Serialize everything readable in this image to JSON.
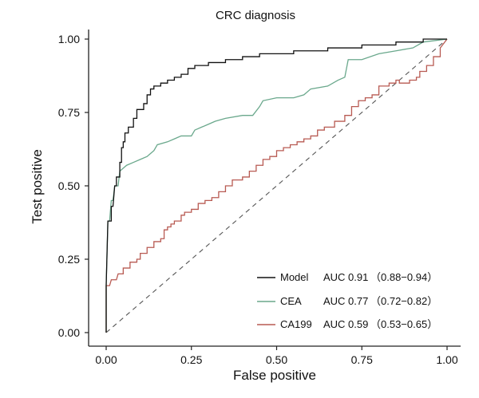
{
  "chart_data": {
    "type": "line",
    "title": "CRC diagnosis",
    "xlabel": "False positive",
    "ylabel": "Test positive",
    "xlim": [
      0,
      1
    ],
    "ylim": [
      0,
      1
    ],
    "x_ticks": [
      "0.00",
      "0.25",
      "0.50",
      "0.75",
      "1.00"
    ],
    "y_ticks": [
      "0.00",
      "0.25",
      "0.50",
      "0.75",
      "1.00"
    ],
    "grid": false,
    "legend_position": "bottom-right",
    "reference_line": {
      "style": "dashed",
      "from": [
        0,
        0
      ],
      "to": [
        1,
        1
      ],
      "color": "#555555"
    },
    "series": [
      {
        "name": "Model",
        "auc_label": "AUC 0.91",
        "ci_label": "（0.88−0.94）",
        "color": "#111111",
        "points": [
          [
            0,
            0
          ],
          [
            0,
            0.16
          ],
          [
            0.005,
            0.38
          ],
          [
            0.015,
            0.38
          ],
          [
            0.015,
            0.43
          ],
          [
            0.02,
            0.43
          ],
          [
            0.025,
            0.5
          ],
          [
            0.03,
            0.5
          ],
          [
            0.03,
            0.53
          ],
          [
            0.04,
            0.53
          ],
          [
            0.04,
            0.58
          ],
          [
            0.045,
            0.58
          ],
          [
            0.045,
            0.63
          ],
          [
            0.05,
            0.63
          ],
          [
            0.05,
            0.65
          ],
          [
            0.055,
            0.65
          ],
          [
            0.055,
            0.68
          ],
          [
            0.065,
            0.68
          ],
          [
            0.065,
            0.7
          ],
          [
            0.08,
            0.7
          ],
          [
            0.08,
            0.73
          ],
          [
            0.09,
            0.73
          ],
          [
            0.09,
            0.76
          ],
          [
            0.11,
            0.76
          ],
          [
            0.11,
            0.78
          ],
          [
            0.12,
            0.78
          ],
          [
            0.12,
            0.81
          ],
          [
            0.13,
            0.81
          ],
          [
            0.13,
            0.83
          ],
          [
            0.14,
            0.83
          ],
          [
            0.14,
            0.84
          ],
          [
            0.16,
            0.84
          ],
          [
            0.16,
            0.85
          ],
          [
            0.18,
            0.85
          ],
          [
            0.18,
            0.86
          ],
          [
            0.2,
            0.86
          ],
          [
            0.2,
            0.87
          ],
          [
            0.22,
            0.87
          ],
          [
            0.22,
            0.88
          ],
          [
            0.24,
            0.88
          ],
          [
            0.24,
            0.9
          ],
          [
            0.26,
            0.9
          ],
          [
            0.26,
            0.91
          ],
          [
            0.3,
            0.91
          ],
          [
            0.3,
            0.92
          ],
          [
            0.35,
            0.92
          ],
          [
            0.35,
            0.93
          ],
          [
            0.4,
            0.93
          ],
          [
            0.4,
            0.94
          ],
          [
            0.45,
            0.94
          ],
          [
            0.45,
            0.95
          ],
          [
            0.55,
            0.95
          ],
          [
            0.55,
            0.96
          ],
          [
            0.65,
            0.96
          ],
          [
            0.65,
            0.97
          ],
          [
            0.75,
            0.97
          ],
          [
            0.75,
            0.98
          ],
          [
            0.85,
            0.98
          ],
          [
            0.85,
            0.99
          ],
          [
            0.93,
            0.99
          ],
          [
            0.93,
            1.0
          ],
          [
            1.0,
            1.0
          ]
        ]
      },
      {
        "name": "CEA",
        "auc_label": "AUC 0.77",
        "ci_label": "（0.72−0.82）",
        "color": "#6aa88c",
        "points": [
          [
            0,
            0
          ],
          [
            0,
            0.16
          ],
          [
            0.005,
            0.38
          ],
          [
            0.01,
            0.38
          ],
          [
            0.015,
            0.45
          ],
          [
            0.02,
            0.45
          ],
          [
            0.025,
            0.5
          ],
          [
            0.035,
            0.5
          ],
          [
            0.04,
            0.55
          ],
          [
            0.05,
            0.56
          ],
          [
            0.06,
            0.57
          ],
          [
            0.08,
            0.58
          ],
          [
            0.1,
            0.59
          ],
          [
            0.12,
            0.6
          ],
          [
            0.13,
            0.61
          ],
          [
            0.14,
            0.62
          ],
          [
            0.15,
            0.64
          ],
          [
            0.18,
            0.65
          ],
          [
            0.2,
            0.66
          ],
          [
            0.22,
            0.67
          ],
          [
            0.25,
            0.67
          ],
          [
            0.26,
            0.69
          ],
          [
            0.28,
            0.7
          ],
          [
            0.3,
            0.71
          ],
          [
            0.32,
            0.72
          ],
          [
            0.35,
            0.73
          ],
          [
            0.4,
            0.74
          ],
          [
            0.43,
            0.74
          ],
          [
            0.45,
            0.77
          ],
          [
            0.46,
            0.79
          ],
          [
            0.5,
            0.8
          ],
          [
            0.55,
            0.8
          ],
          [
            0.58,
            0.81
          ],
          [
            0.6,
            0.83
          ],
          [
            0.65,
            0.84
          ],
          [
            0.68,
            0.86
          ],
          [
            0.7,
            0.87
          ],
          [
            0.71,
            0.93
          ],
          [
            0.75,
            0.93
          ],
          [
            0.8,
            0.95
          ],
          [
            0.85,
            0.96
          ],
          [
            0.9,
            0.97
          ],
          [
            0.93,
            0.99
          ],
          [
            1.0,
            1.0
          ]
        ]
      },
      {
        "name": "CA199",
        "auc_label": "AUC 0.59",
        "ci_label": "（0.53−0.65）",
        "color": "#b85a52",
        "points": [
          [
            0,
            0
          ],
          [
            0,
            0.16
          ],
          [
            0.01,
            0.16
          ],
          [
            0.015,
            0.18
          ],
          [
            0.03,
            0.18
          ],
          [
            0.035,
            0.2
          ],
          [
            0.05,
            0.2
          ],
          [
            0.05,
            0.22
          ],
          [
            0.07,
            0.22
          ],
          [
            0.07,
            0.24
          ],
          [
            0.09,
            0.24
          ],
          [
            0.09,
            0.25
          ],
          [
            0.1,
            0.25
          ],
          [
            0.1,
            0.27
          ],
          [
            0.12,
            0.27
          ],
          [
            0.12,
            0.29
          ],
          [
            0.14,
            0.29
          ],
          [
            0.14,
            0.31
          ],
          [
            0.16,
            0.31
          ],
          [
            0.16,
            0.32
          ],
          [
            0.17,
            0.32
          ],
          [
            0.17,
            0.35
          ],
          [
            0.18,
            0.35
          ],
          [
            0.18,
            0.36
          ],
          [
            0.19,
            0.36
          ],
          [
            0.19,
            0.37
          ],
          [
            0.2,
            0.37
          ],
          [
            0.2,
            0.38
          ],
          [
            0.22,
            0.38
          ],
          [
            0.22,
            0.4
          ],
          [
            0.23,
            0.4
          ],
          [
            0.23,
            0.41
          ],
          [
            0.25,
            0.41
          ],
          [
            0.25,
            0.42
          ],
          [
            0.27,
            0.42
          ],
          [
            0.27,
            0.44
          ],
          [
            0.29,
            0.44
          ],
          [
            0.29,
            0.45
          ],
          [
            0.31,
            0.45
          ],
          [
            0.31,
            0.46
          ],
          [
            0.33,
            0.46
          ],
          [
            0.33,
            0.48
          ],
          [
            0.35,
            0.48
          ],
          [
            0.35,
            0.5
          ],
          [
            0.37,
            0.5
          ],
          [
            0.37,
            0.52
          ],
          [
            0.4,
            0.52
          ],
          [
            0.4,
            0.53
          ],
          [
            0.42,
            0.53
          ],
          [
            0.42,
            0.55
          ],
          [
            0.44,
            0.55
          ],
          [
            0.44,
            0.57
          ],
          [
            0.46,
            0.57
          ],
          [
            0.46,
            0.59
          ],
          [
            0.48,
            0.59
          ],
          [
            0.48,
            0.6
          ],
          [
            0.5,
            0.6
          ],
          [
            0.5,
            0.62
          ],
          [
            0.52,
            0.62
          ],
          [
            0.52,
            0.63
          ],
          [
            0.54,
            0.63
          ],
          [
            0.54,
            0.64
          ],
          [
            0.56,
            0.64
          ],
          [
            0.56,
            0.65
          ],
          [
            0.58,
            0.65
          ],
          [
            0.58,
            0.66
          ],
          [
            0.6,
            0.66
          ],
          [
            0.6,
            0.67
          ],
          [
            0.62,
            0.67
          ],
          [
            0.62,
            0.69
          ],
          [
            0.64,
            0.69
          ],
          [
            0.64,
            0.7
          ],
          [
            0.67,
            0.7
          ],
          [
            0.67,
            0.72
          ],
          [
            0.7,
            0.72
          ],
          [
            0.7,
            0.74
          ],
          [
            0.72,
            0.74
          ],
          [
            0.72,
            0.77
          ],
          [
            0.74,
            0.77
          ],
          [
            0.74,
            0.79
          ],
          [
            0.76,
            0.79
          ],
          [
            0.76,
            0.8
          ],
          [
            0.78,
            0.8
          ],
          [
            0.78,
            0.81
          ],
          [
            0.8,
            0.81
          ],
          [
            0.8,
            0.84
          ],
          [
            0.83,
            0.84
          ],
          [
            0.83,
            0.85
          ],
          [
            0.85,
            0.85
          ],
          [
            0.85,
            0.86
          ],
          [
            0.86,
            0.86
          ],
          [
            0.86,
            0.85
          ],
          [
            0.89,
            0.85
          ],
          [
            0.89,
            0.86
          ],
          [
            0.91,
            0.86
          ],
          [
            0.91,
            0.87
          ],
          [
            0.92,
            0.87
          ],
          [
            0.92,
            0.89
          ],
          [
            0.94,
            0.89
          ],
          [
            0.94,
            0.91
          ],
          [
            0.96,
            0.91
          ],
          [
            0.96,
            0.94
          ],
          [
            0.98,
            0.94
          ],
          [
            0.98,
            0.97
          ],
          [
            1.0,
            1.0
          ]
        ]
      }
    ]
  }
}
